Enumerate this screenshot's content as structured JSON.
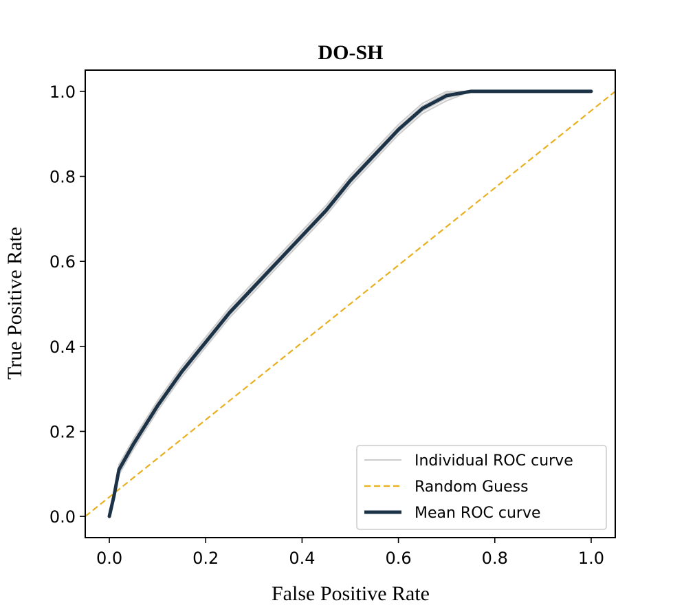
{
  "chart_data": {
    "type": "line",
    "title": "DO-SH",
    "xlabel": "False Positive Rate",
    "ylabel": "True Positive Rate",
    "xlim": [
      -0.05,
      1.05
    ],
    "ylim": [
      -0.05,
      1.05
    ],
    "xticks": [
      0.0,
      0.2,
      0.4,
      0.6,
      0.8,
      1.0
    ],
    "yticks": [
      0.0,
      0.2,
      0.4,
      0.6,
      0.8,
      1.0
    ],
    "xtick_labels": [
      "0.0",
      "0.2",
      "0.4",
      "0.6",
      "0.8",
      "1.0"
    ],
    "ytick_labels": [
      "0.0",
      "0.2",
      "0.4",
      "0.6",
      "0.8",
      "1.0"
    ],
    "grid": false,
    "legend_position": "lower-right",
    "series": [
      {
        "name": "Individual ROC curve",
        "style": "solid",
        "color": "#cccccc",
        "individual_offsets": [
          -0.012,
          -0.006,
          0.0,
          0.006,
          0.012
        ],
        "x": [
          0.0,
          0.01,
          0.02,
          0.05,
          0.1,
          0.15,
          0.2,
          0.25,
          0.3,
          0.35,
          0.4,
          0.45,
          0.5,
          0.55,
          0.6,
          0.65,
          0.7,
          0.75,
          0.8,
          0.9,
          1.0
        ],
        "y": [
          0.0,
          0.05,
          0.11,
          0.17,
          0.26,
          0.34,
          0.41,
          0.48,
          0.54,
          0.6,
          0.66,
          0.72,
          0.79,
          0.85,
          0.91,
          0.96,
          0.99,
          1.0,
          1.0,
          1.0,
          1.0
        ]
      },
      {
        "name": "Random Guess",
        "style": "dashed",
        "color": "#e8b01e",
        "x": [
          -0.05,
          1.05
        ],
        "y": [
          -0.05,
          1.05
        ]
      },
      {
        "name": "Mean ROC curve",
        "style": "solid",
        "color": "#1c3247",
        "x": [
          0.0,
          0.01,
          0.02,
          0.05,
          0.1,
          0.15,
          0.2,
          0.25,
          0.3,
          0.35,
          0.4,
          0.45,
          0.5,
          0.55,
          0.6,
          0.65,
          0.7,
          0.75,
          0.8,
          0.9,
          1.0
        ],
        "y": [
          0.0,
          0.05,
          0.11,
          0.17,
          0.26,
          0.34,
          0.41,
          0.48,
          0.54,
          0.6,
          0.66,
          0.72,
          0.79,
          0.85,
          0.91,
          0.96,
          0.99,
          1.0,
          1.0,
          1.0,
          1.0
        ]
      }
    ]
  }
}
